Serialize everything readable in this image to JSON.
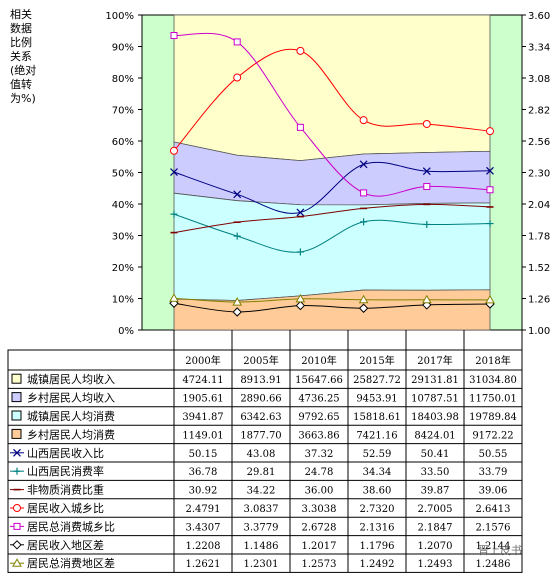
{
  "chart_data": {
    "type": "area",
    "left_axis_ticks": [
      "0%",
      "10%",
      "20%",
      "30%",
      "40%",
      "50%",
      "60%",
      "70%",
      "80%",
      "90%",
      "100%"
    ],
    "right_axis_ticks": [
      "1.00",
      "1.26",
      "1.52",
      "1.78",
      "2.04",
      "2.30",
      "2.56",
      "2.82",
      "3.08",
      "3.34",
      "3.60"
    ],
    "left_ylim": [
      0,
      100
    ],
    "right_ylim": [
      1.0,
      3.6
    ],
    "left_ylabel_lines": [
      "相关",
      "数据",
      "比例",
      "关系",
      "(绝对",
      "值转",
      "为%)"
    ],
    "categories": [
      "2000年",
      "2005年",
      "2010年",
      "2015年",
      "2017年",
      "2018年"
    ],
    "stacked_series": [
      {
        "name": "城镇居民人均收入",
        "values": [
          4724.11,
          8913.91,
          15647.66,
          25827.72,
          29131.81,
          31034.8
        ],
        "color": "#ffffcc"
      },
      {
        "name": "乡村居民人均收入",
        "values": [
          1905.61,
          2890.66,
          4736.25,
          9453.91,
          10787.51,
          11750.01
        ],
        "color": "#ccccff"
      },
      {
        "name": "城镇居民人均消费",
        "values": [
          3941.87,
          6342.63,
          9792.65,
          15818.61,
          18403.98,
          19789.84
        ],
        "color": "#ccffff"
      },
      {
        "name": "乡村居民人均消费",
        "values": [
          1149.01,
          1877.7,
          3663.86,
          7421.16,
          8424.01,
          9172.22
        ],
        "color": "#ffcc99"
      }
    ],
    "percent_lines": [
      {
        "name": "山西居民收入比",
        "values": [
          50.15,
          43.08,
          37.32,
          52.59,
          50.41,
          50.55
        ],
        "color": "#000080",
        "marker": "x"
      },
      {
        "name": "山西居民消费率",
        "values": [
          36.78,
          29.81,
          24.78,
          34.34,
          33.5,
          33.79
        ],
        "color": "#008080",
        "marker": "plus"
      },
      {
        "name": "非物质消费比重",
        "values": [
          30.92,
          34.22,
          36.0,
          38.6,
          39.87,
          39.06
        ],
        "color": "#800000",
        "marker": "dash"
      }
    ],
    "ratio_lines": [
      {
        "name": "居民收入城乡比",
        "values": [
          2.4791,
          3.0837,
          3.3038,
          2.732,
          2.7005,
          2.6413
        ],
        "color": "#ff0000",
        "marker": "circle"
      },
      {
        "name": "居民总消费城乡比",
        "values": [
          3.4307,
          3.3779,
          2.6728,
          2.1316,
          2.1847,
          2.1576
        ],
        "color": "#cc00cc",
        "marker": "square"
      },
      {
        "name": "居民收入地区差",
        "values": [
          1.2208,
          1.1486,
          1.2017,
          1.1796,
          1.207,
          1.2144
        ],
        "color": "#000000",
        "marker": "diamond"
      },
      {
        "name": "居民总消费地区差",
        "values": [
          1.2621,
          1.2301,
          1.2573,
          1.2492,
          1.2493,
          1.2486
        ],
        "color": "#808000",
        "marker": "triangle"
      }
    ],
    "table_rows": [
      {
        "label": "城镇居民人均收入",
        "cells": [
          "4724.11",
          "8913.91",
          "15647.66",
          "25827.72",
          "29131.81",
          "31034.80"
        ]
      },
      {
        "label": "乡村居民人均收入",
        "cells": [
          "1905.61",
          "2890.66",
          "4736.25",
          "9453.91",
          "10787.51",
          "11750.01"
        ]
      },
      {
        "label": "城镇居民人均消费",
        "cells": [
          "3941.87",
          "6342.63",
          "9792.65",
          "15818.61",
          "18403.98",
          "19789.84"
        ]
      },
      {
        "label": "乡村居民人均消费",
        "cells": [
          "1149.01",
          "1877.70",
          "3663.86",
          "7421.16",
          "8424.01",
          "9172.22"
        ]
      },
      {
        "label": "山西居民收入比",
        "cells": [
          "50.15",
          "43.08",
          "37.32",
          "52.59",
          "50.41",
          "50.55"
        ]
      },
      {
        "label": "山西居民消费率",
        "cells": [
          "36.78",
          "29.81",
          "24.78",
          "34.34",
          "33.50",
          "33.79"
        ]
      },
      {
        "label": "非物质消费比重",
        "cells": [
          "30.92",
          "34.22",
          "36.00",
          "38.60",
          "39.87",
          "39.06"
        ]
      },
      {
        "label": "居民收入城乡比",
        "cells": [
          "2.4791",
          "3.0837",
          "3.3038",
          "2.7320",
          "2.7005",
          "2.6413"
        ]
      },
      {
        "label": "居民总消费城乡比",
        "cells": [
          "3.4307",
          "3.3779",
          "2.6728",
          "2.1316",
          "2.1847",
          "2.1576"
        ]
      },
      {
        "label": "居民收入地区差",
        "cells": [
          "1.2208",
          "1.1486",
          "1.2017",
          "1.1796",
          "1.2070",
          "1.2144"
        ]
      },
      {
        "label": "居民总消费地区差",
        "cells": [
          "1.2621",
          "1.2301",
          "1.2573",
          "1.2492",
          "1.2493",
          "1.2486"
        ]
      }
    ],
    "plot_background": "#ccffcc",
    "grid": false
  },
  "watermark": "晋上皮书"
}
